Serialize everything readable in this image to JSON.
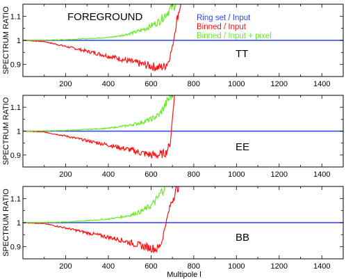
{
  "figure": {
    "title": "FOREGROUND",
    "xlabel": "Multipole l",
    "ylabel": "SPECTRUM RATIO"
  },
  "legend": [
    {
      "label": "Ring set / Input",
      "color": "#2a3fff"
    },
    {
      "label": "Binned / Input",
      "color": "#ff1010"
    },
    {
      "label": "Binned / Input + pixel",
      "color": "#66ee22"
    }
  ],
  "chart_data": [
    {
      "type": "line",
      "panel": "TT",
      "xlabel": "Multipole l",
      "ylabel": "SPECTRUM RATIO",
      "xlim": [
        0,
        1500
      ],
      "ylim": [
        0.85,
        1.15
      ],
      "xticks": [
        200,
        400,
        600,
        800,
        1000,
        1200,
        1400
      ],
      "yticks": [
        0.9,
        1,
        1.1
      ],
      "grid": false,
      "legend_position": "top-right",
      "series": [
        {
          "name": "Ring set / Input",
          "color": "#2a3fff",
          "x": [
            0,
            1500
          ],
          "y": [
            1.0,
            1.0
          ]
        },
        {
          "name": "Binned / Input",
          "color": "#ff1010",
          "x": [
            0,
            100,
            200,
            300,
            400,
            450,
            500,
            550,
            600,
            630,
            660,
            680,
            700,
            720,
            740
          ],
          "y": [
            1.0,
            0.995,
            0.975,
            0.955,
            0.935,
            0.925,
            0.913,
            0.903,
            0.893,
            0.888,
            0.89,
            0.91,
            0.97,
            1.08,
            1.16
          ]
        },
        {
          "name": "Binned / Input + pixel",
          "color": "#66ee22",
          "x": [
            0,
            100,
            200,
            300,
            400,
            450,
            500,
            550,
            600,
            640,
            660,
            680,
            700,
            720
          ],
          "y": [
            1.0,
            1.001,
            1.003,
            1.007,
            1.012,
            1.018,
            1.028,
            1.04,
            1.06,
            1.08,
            1.1,
            1.12,
            1.14,
            1.16
          ]
        }
      ]
    },
    {
      "type": "line",
      "panel": "EE",
      "xlabel": "Multipole l",
      "ylabel": "SPECTRUM RATIO",
      "xlim": [
        0,
        1500
      ],
      "ylim": [
        0.85,
        1.15
      ],
      "xticks": [
        200,
        400,
        600,
        800,
        1000,
        1200,
        1400
      ],
      "yticks": [
        0.9,
        1,
        1.1
      ],
      "grid": false,
      "series": [
        {
          "name": "Ring set / Input",
          "color": "#2a3fff",
          "x": [
            0,
            1500
          ],
          "y": [
            1.0,
            1.0
          ]
        },
        {
          "name": "Binned / Input",
          "color": "#ff1010",
          "x": [
            0,
            100,
            200,
            300,
            400,
            450,
            500,
            550,
            600,
            640,
            670,
            690,
            700,
            710
          ],
          "y": [
            1.0,
            0.996,
            0.98,
            0.96,
            0.942,
            0.932,
            0.922,
            0.91,
            0.9,
            0.9,
            0.91,
            0.95,
            1.05,
            1.16
          ]
        },
        {
          "name": "Binned / Input + pixel",
          "color": "#66ee22",
          "x": [
            0,
            100,
            200,
            300,
            400,
            450,
            500,
            550,
            600,
            640,
            660,
            680,
            700
          ],
          "y": [
            1.0,
            1.001,
            1.003,
            1.007,
            1.012,
            1.018,
            1.025,
            1.035,
            1.05,
            1.07,
            1.1,
            1.13,
            1.16
          ]
        }
      ]
    },
    {
      "type": "line",
      "panel": "BB",
      "xlabel": "Multipole l",
      "ylabel": "SPECTRUM RATIO",
      "xlim": [
        0,
        1500
      ],
      "ylim": [
        0.85,
        1.15
      ],
      "xticks": [
        200,
        400,
        600,
        800,
        1000,
        1200,
        1400
      ],
      "yticks": [
        0.9,
        1,
        1.1
      ],
      "grid": false,
      "series": [
        {
          "name": "Ring set / Input",
          "color": "#2a3fff",
          "x": [
            0,
            1500
          ],
          "y": [
            1.0,
            1.0
          ]
        },
        {
          "name": "Binned / Input",
          "color": "#ff1010",
          "x": [
            0,
            100,
            200,
            300,
            400,
            450,
            500,
            550,
            600,
            630,
            650,
            670,
            690,
            710,
            730
          ],
          "y": [
            1.0,
            0.996,
            0.978,
            0.958,
            0.94,
            0.93,
            0.918,
            0.905,
            0.895,
            0.89,
            0.92,
            1.0,
            1.07,
            1.12,
            1.16
          ]
        },
        {
          "name": "Binned / Input + pixel",
          "color": "#66ee22",
          "x": [
            0,
            100,
            200,
            300,
            400,
            450,
            500,
            550,
            600,
            630,
            650,
            670
          ],
          "y": [
            1.0,
            1.001,
            1.003,
            1.008,
            1.015,
            1.022,
            1.03,
            1.045,
            1.07,
            1.1,
            1.13,
            1.16
          ]
        }
      ]
    }
  ]
}
